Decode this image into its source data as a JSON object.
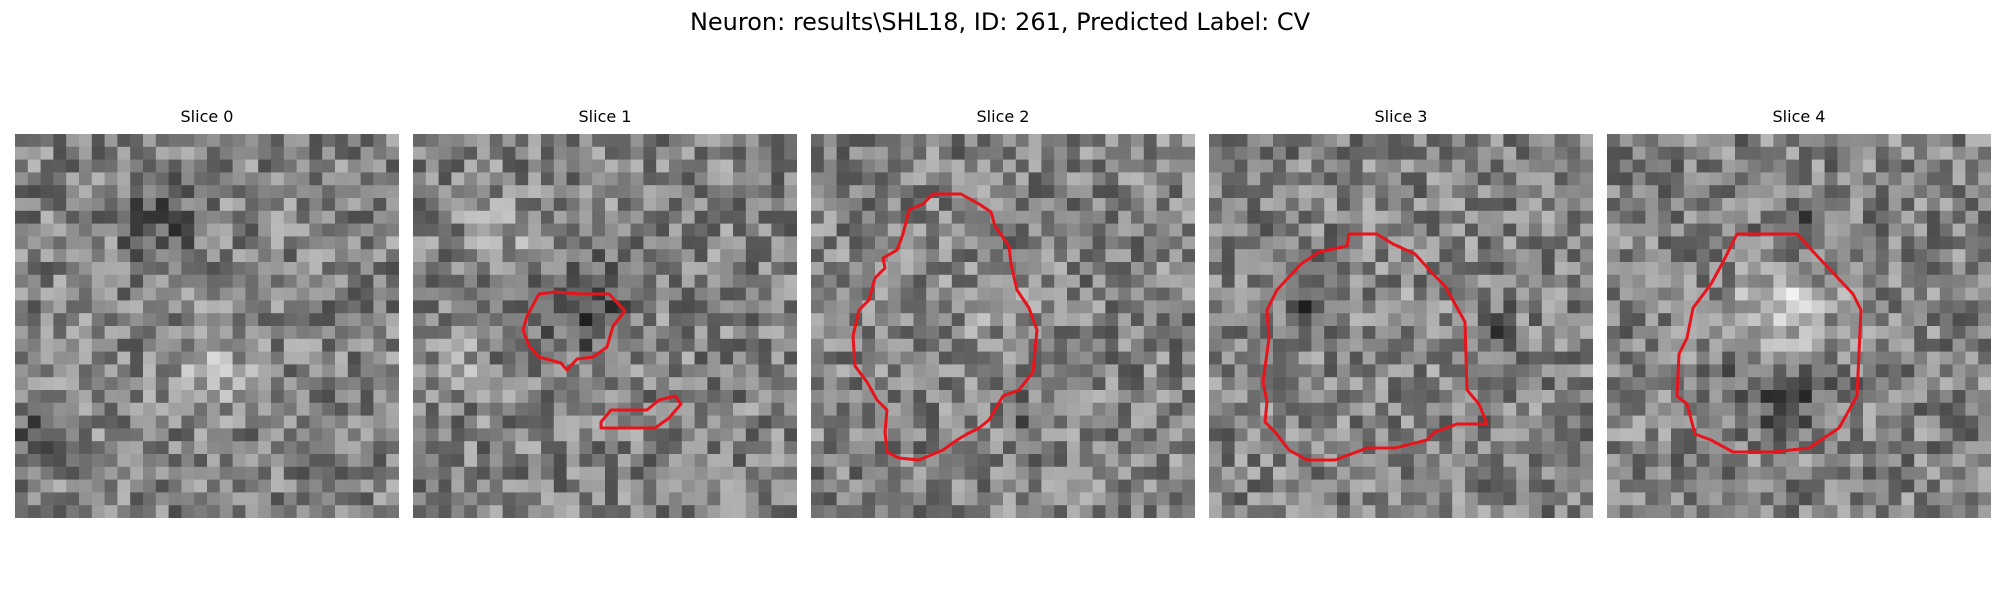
{
  "figure": {
    "title": "Neuron: results\\SHL18, ID: 261, Predicted Label: CV",
    "contour_color": "#e8141c"
  },
  "panels": [
    {
      "title": "Slice 0"
    },
    {
      "title": "Slice 1"
    },
    {
      "title": "Slice 2"
    },
    {
      "title": "Slice 3"
    },
    {
      "title": "Slice 4"
    }
  ]
}
